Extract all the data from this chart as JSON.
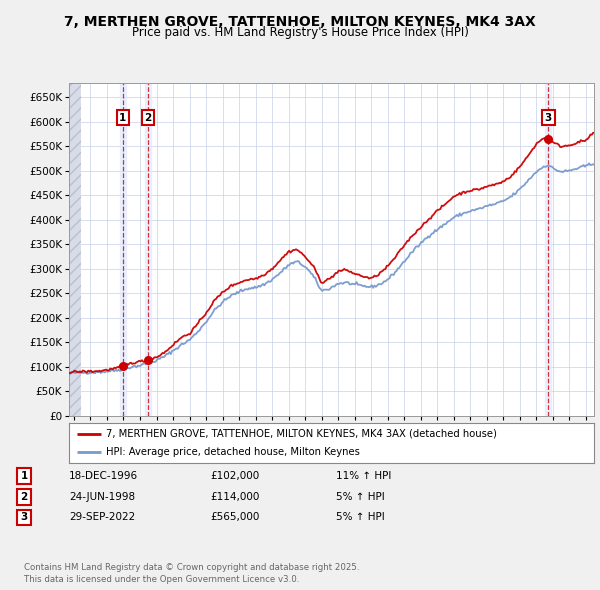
{
  "title": "7, MERTHEN GROVE, TATTENHOE, MILTON KEYNES, MK4 3AX",
  "subtitle": "Price paid vs. HM Land Registry's House Price Index (HPI)",
  "legend_line1": "7, MERTHEN GROVE, TATTENHOE, MILTON KEYNES, MK4 3AX (detached house)",
  "legend_line2": "HPI: Average price, detached house, Milton Keynes",
  "footer": "Contains HM Land Registry data © Crown copyright and database right 2025.\nThis data is licensed under the Open Government Licence v3.0.",
  "sale_markers": [
    {
      "label": "1",
      "date_num": 1996.96,
      "value": 102000
    },
    {
      "label": "2",
      "date_num": 1998.48,
      "value": 114000
    },
    {
      "label": "3",
      "date_num": 2022.74,
      "value": 565000
    }
  ],
  "sale_info": [
    {
      "num": "1",
      "date": "18-DEC-1996",
      "price": "£102,000",
      "hpi": "11% ↑ HPI"
    },
    {
      "num": "2",
      "date": "24-JUN-1998",
      "price": "£114,000",
      "hpi": "5% ↑ HPI"
    },
    {
      "num": "3",
      "date": "29-SEP-2022",
      "price": "£565,000",
      "hpi": "5% ↑ HPI"
    }
  ],
  "ylim": [
    0,
    680000
  ],
  "xlim_start": 1993.7,
  "xlim_end": 2025.5,
  "bg_color": "#f0f0f0",
  "plot_bg_color": "#ffffff",
  "grid_color": "#c8d0e8",
  "red_color": "#cc0000",
  "blue_color": "#7799cc",
  "hatch_color": "#d8dce8",
  "sale_band_color": "#dde8ff"
}
